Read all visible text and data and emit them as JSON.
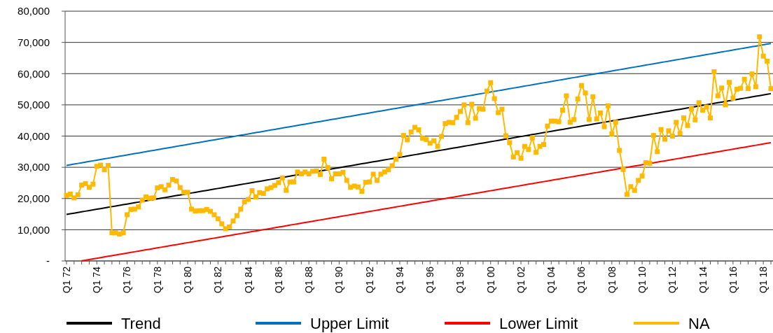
{
  "chart_data": {
    "type": "line",
    "categories": [
      "Q1 72",
      null,
      null,
      null,
      null,
      null,
      null,
      null,
      "Q1 74",
      null,
      null,
      null,
      null,
      null,
      null,
      null,
      "Q1 76",
      null,
      null,
      null,
      null,
      null,
      null,
      null,
      "Q1 78",
      null,
      null,
      null,
      null,
      null,
      null,
      null,
      "Q1 80",
      null,
      null,
      null,
      null,
      null,
      null,
      null,
      "Q1 82",
      null,
      null,
      null,
      null,
      null,
      null,
      null,
      "Q1 84",
      null,
      null,
      null,
      null,
      null,
      null,
      null,
      "Q1 86",
      null,
      null,
      null,
      null,
      null,
      null,
      null,
      "Q1 88",
      null,
      null,
      null,
      null,
      null,
      null,
      null,
      "Q1 90",
      null,
      null,
      null,
      null,
      null,
      null,
      null,
      "Q1 92",
      null,
      null,
      null,
      null,
      null,
      null,
      null,
      "Q1 94",
      null,
      null,
      null,
      null,
      null,
      null,
      null,
      "Q1 96",
      null,
      null,
      null,
      null,
      null,
      null,
      null,
      "Q1 98",
      null,
      null,
      null,
      null,
      null,
      null,
      null,
      "Q1 00",
      null,
      null,
      null,
      null,
      null,
      null,
      null,
      "Q1 02",
      null,
      null,
      null,
      null,
      null,
      null,
      null,
      "Q1 04",
      null,
      null,
      null,
      null,
      null,
      null,
      null,
      "Q1 06",
      null,
      null,
      null,
      null,
      null,
      null,
      null,
      "Q1 08",
      null,
      null,
      null,
      null,
      null,
      null,
      null,
      "Q1 10",
      null,
      null,
      null,
      null,
      null,
      null,
      null,
      "Q1 12",
      null,
      null,
      null,
      null,
      null,
      null,
      null,
      "Q1 14",
      null,
      null,
      null,
      null,
      null,
      null,
      null,
      "Q1 16",
      null,
      null,
      null,
      null,
      null,
      null,
      null,
      "Q1 18",
      null,
      null
    ],
    "series": [
      {
        "name": "Trend",
        "color": "#000000",
        "marker": "none",
        "values": [
          14900,
          15108,
          15316,
          15524,
          15732,
          15940,
          16148,
          16356,
          16564,
          16772,
          16980,
          17188,
          17396,
          17604,
          17812,
          18020,
          18228,
          18436,
          18644,
          18852,
          19060,
          19268,
          19476,
          19684,
          19892,
          20100,
          20308,
          20516,
          20724,
          20932,
          21140,
          21348,
          21556,
          21764,
          21972,
          22180,
          22388,
          22596,
          22804,
          23012,
          23220,
          23428,
          23636,
          23844,
          24052,
          24260,
          24468,
          24676,
          24884,
          25092,
          25300,
          25508,
          25716,
          25924,
          26132,
          26340,
          26548,
          26756,
          26964,
          27172,
          27380,
          27588,
          27796,
          28004,
          28212,
          28420,
          28628,
          28836,
          29044,
          29252,
          29460,
          29668,
          29876,
          30084,
          30292,
          30500,
          30708,
          30916,
          31124,
          31332,
          31540,
          31748,
          31956,
          32164,
          32372,
          32580,
          32788,
          32996,
          33204,
          33412,
          33620,
          33828,
          34036,
          34244,
          34452,
          34660,
          34868,
          35076,
          35284,
          35492,
          35700,
          35908,
          36116,
          36324,
          36532,
          36740,
          36948,
          37156,
          37364,
          37572,
          37780,
          37988,
          38196,
          38404,
          38612,
          38820,
          39028,
          39236,
          39444,
          39652,
          39860,
          40068,
          40276,
          40484,
          40692,
          40900,
          41108,
          41316,
          41524,
          41732,
          41940,
          42148,
          42356,
          42564,
          42772,
          42980,
          43188,
          43396,
          43604,
          43812,
          44020,
          44228,
          44436,
          44644,
          44852,
          45060,
          45268,
          45476,
          45684,
          45892,
          46100,
          46308,
          46516,
          46724,
          46932,
          47140,
          47348,
          47556,
          47764,
          47972,
          48180,
          48388,
          48596,
          48804,
          49012,
          49220,
          49428,
          49636,
          49844,
          50052,
          50260,
          50468,
          50676,
          50884,
          51092,
          51300,
          51508,
          51716,
          51924,
          52132,
          52340,
          52548,
          52756,
          52964,
          53172,
          53380,
          53588
        ]
      },
      {
        "name": "Upper Limit",
        "color": "#0070c0",
        "marker": "none",
        "values": [
          30600,
          30810,
          31020,
          31230,
          31440,
          31650,
          31860,
          32070,
          32280,
          32490,
          32700,
          32910,
          33120,
          33330,
          33540,
          33750,
          33960,
          34170,
          34380,
          34590,
          34800,
          35010,
          35220,
          35430,
          35640,
          35850,
          36060,
          36270,
          36480,
          36690,
          36900,
          37110,
          37320,
          37530,
          37740,
          37950,
          38160,
          38370,
          38580,
          38790,
          39000,
          39210,
          39420,
          39630,
          39840,
          40050,
          40260,
          40470,
          40680,
          40890,
          41100,
          41310,
          41520,
          41730,
          41940,
          42150,
          42360,
          42570,
          42780,
          42990,
          43200,
          43410,
          43620,
          43830,
          44040,
          44250,
          44460,
          44670,
          44880,
          45090,
          45300,
          45510,
          45720,
          45930,
          46140,
          46350,
          46560,
          46770,
          46980,
          47190,
          47400,
          47610,
          47820,
          48030,
          48240,
          48450,
          48660,
          48870,
          49080,
          49290,
          49500,
          49710,
          49920,
          50130,
          50340,
          50550,
          50760,
          50970,
          51180,
          51390,
          51600,
          51810,
          52020,
          52230,
          52440,
          52650,
          52860,
          53070,
          53280,
          53490,
          53700,
          53910,
          54120,
          54330,
          54540,
          54750,
          54960,
          55170,
          55380,
          55590,
          55800,
          56010,
          56220,
          56430,
          56640,
          56850,
          57060,
          57270,
          57480,
          57690,
          57900,
          58110,
          58320,
          58530,
          58740,
          58950,
          59160,
          59370,
          59580,
          59790,
          60000,
          60210,
          60420,
          60630,
          60840,
          61050,
          61260,
          61470,
          61680,
          61890,
          62100,
          62310,
          62520,
          62730,
          62940,
          63150,
          63360,
          63570,
          63780,
          63990,
          64200,
          64410,
          64620,
          64830,
          65040,
          65250,
          65460,
          65670,
          65880,
          66090,
          66300,
          66510,
          66720,
          66930,
          67140,
          67350,
          67560,
          67770,
          67980,
          68190,
          68400,
          68610,
          68820,
          69030,
          69240,
          69450,
          69660
        ]
      },
      {
        "name": "Lower Limit",
        "color": "#ff0000",
        "marker": "none",
        "values": [
          null,
          null,
          null,
          null,
          32,
          240,
          448,
          656,
          864,
          1072,
          1280,
          1488,
          1696,
          1904,
          2112,
          2320,
          2528,
          2736,
          2944,
          3152,
          3360,
          3568,
          3776,
          3984,
          4192,
          4400,
          4608,
          4816,
          5024,
          5232,
          5440,
          5648,
          5856,
          6064,
          6272,
          6480,
          6688,
          6896,
          7104,
          7312,
          7520,
          7728,
          7936,
          8144,
          8352,
          8560,
          8768,
          8976,
          9184,
          9392,
          9600,
          9808,
          10016,
          10224,
          10432,
          10640,
          10848,
          11056,
          11264,
          11472,
          11680,
          11888,
          12096,
          12304,
          12512,
          12720,
          12928,
          13136,
          13344,
          13552,
          13760,
          13968,
          14176,
          14384,
          14592,
          14800,
          15008,
          15216,
          15424,
          15632,
          15840,
          16048,
          16256,
          16464,
          16672,
          16880,
          17088,
          17296,
          17504,
          17712,
          17920,
          18128,
          18336,
          18544,
          18752,
          18960,
          19168,
          19376,
          19584,
          19792,
          20000,
          20208,
          20416,
          20624,
          20832,
          21040,
          21248,
          21456,
          21664,
          21872,
          22080,
          22288,
          22496,
          22704,
          22912,
          23120,
          23328,
          23536,
          23744,
          23952,
          24160,
          24368,
          24576,
          24784,
          24992,
          25200,
          25408,
          25616,
          25824,
          26032,
          26240,
          26448,
          26656,
          26864,
          27072,
          27280,
          27488,
          27696,
          27904,
          28112,
          28320,
          28528,
          28736,
          28944,
          29152,
          29360,
          29568,
          29776,
          29984,
          30192,
          30400,
          30608,
          30816,
          31024,
          31232,
          31440,
          31648,
          31856,
          32064,
          32272,
          32480,
          32688,
          32896,
          33104,
          33312,
          33520,
          33728,
          33936,
          34144,
          34352,
          34560,
          34768,
          34976,
          35184,
          35392,
          35600,
          35808,
          36016,
          36224,
          36432,
          36640,
          36848,
          37056,
          37264,
          37472,
          37680,
          37888
        ]
      },
      {
        "name": "NA",
        "color": "#ffb900",
        "values": [
          21000,
          21400,
          20200,
          21200,
          24300,
          24800,
          23600,
          24600,
          30300,
          30700,
          29200,
          30600,
          9000,
          9000,
          8600,
          9000,
          14800,
          16500,
          16600,
          17300,
          19500,
          20500,
          20100,
          20200,
          23400,
          23800,
          22800,
          24300,
          26100,
          25600,
          23500,
          22000,
          22000,
          16600,
          16000,
          16100,
          16100,
          16500,
          15900,
          14800,
          13500,
          11900,
          10300,
          10900,
          12800,
          14500,
          16600,
          18900,
          19700,
          22500,
          20500,
          21900,
          21600,
          23100,
          23500,
          24200,
          25100,
          26600,
          22600,
          25300,
          25300,
          28500,
          27900,
          28500,
          27900,
          28700,
          28800,
          27700,
          32600,
          29900,
          26300,
          27900,
          27900,
          28400,
          25800,
          23600,
          24000,
          23700,
          22300,
          25200,
          25300,
          27800,
          25800,
          27800,
          28500,
          29200,
          30500,
          32600,
          34100,
          40200,
          38800,
          41300,
          42800,
          42000,
          39300,
          38900,
          37700,
          38500,
          36700,
          39900,
          44000,
          44400,
          44300,
          46000,
          47900,
          50000,
          44300,
          50200,
          45700,
          48800,
          48600,
          54400,
          57100,
          52000,
          47500,
          48600,
          40100,
          37900,
          33300,
          34700,
          32900,
          36700,
          35700,
          39400,
          34800,
          36700,
          37300,
          43200,
          44800,
          44800,
          44600,
          48300,
          52900,
          44400,
          45300,
          51900,
          56200,
          53800,
          45300,
          52600,
          45500,
          47400,
          43000,
          49700,
          40700,
          44400,
          35400,
          29300,
          21300,
          23800,
          22600,
          25800,
          27200,
          31500,
          31300,
          40200,
          35000,
          42100,
          39000,
          41700,
          40000,
          44400,
          40800,
          45800,
          43400,
          48700,
          45200,
          50700,
          48300,
          49300,
          45800,
          60600,
          52900,
          55400,
          50000,
          57200,
          52100,
          55000,
          55300,
          58200,
          55200,
          59900,
          55800,
          71800,
          65600,
          64000,
          55200
        ]
      }
    ],
    "ylim": [
      0,
      80000
    ],
    "yticks": [
      {
        "value": 0,
        "label": "-"
      },
      {
        "value": 10000,
        "label": "10,000"
      },
      {
        "value": 20000,
        "label": "20,000"
      },
      {
        "value": 30000,
        "label": "30,000"
      },
      {
        "value": 40000,
        "label": "40,000"
      },
      {
        "value": 50000,
        "label": "50,000"
      },
      {
        "value": 60000,
        "label": "60,000"
      },
      {
        "value": 70000,
        "label": "70,000"
      },
      {
        "value": 80000,
        "label": "80,000"
      }
    ],
    "grid": "y",
    "legend": "bottom",
    "marker": "square"
  }
}
